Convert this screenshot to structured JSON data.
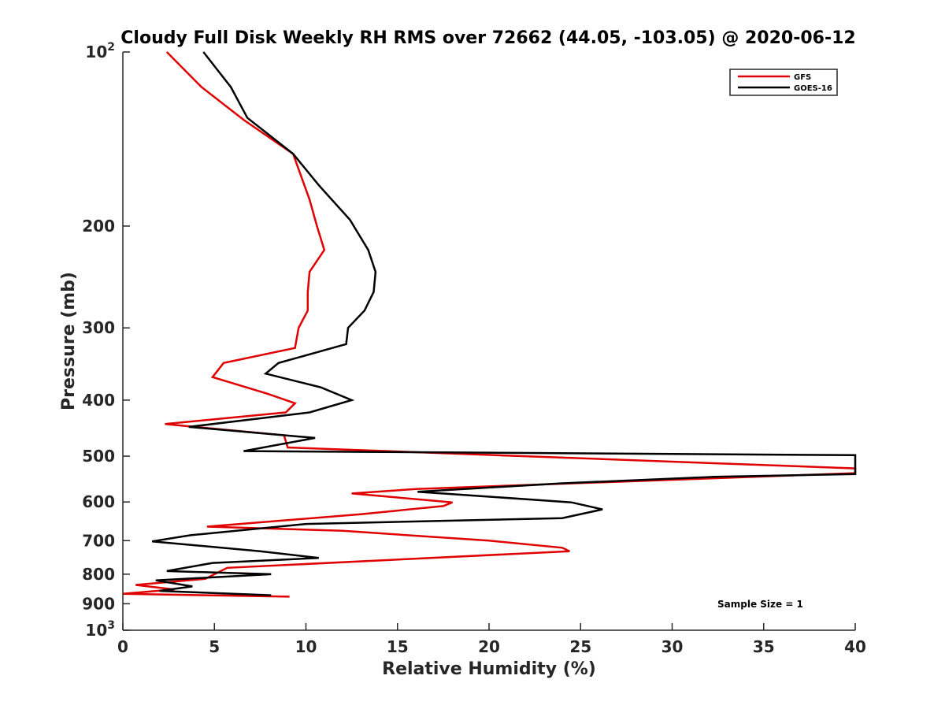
{
  "chart_data": {
    "type": "line",
    "title": "Cloudy Full Disk Weekly RH RMS over 72662 (44.05, -103.05) @ 2020-06-12",
    "xlabel": "Relative Humidity (%)",
    "ylabel": "Pressure (mb)",
    "xlim": [
      0,
      40
    ],
    "ylim": [
      100,
      1000
    ],
    "y_scale": "log",
    "y_reversed": true,
    "x_ticks": [
      "0",
      "5",
      "10",
      "15",
      "20",
      "25",
      "30",
      "35",
      "40"
    ],
    "y_ticks": [
      {
        "p": 100,
        "label": "10",
        "sup": "2"
      },
      {
        "p": 200,
        "label": "200",
        "sup": ""
      },
      {
        "p": 300,
        "label": "300",
        "sup": ""
      },
      {
        "p": 400,
        "label": "400",
        "sup": ""
      },
      {
        "p": 500,
        "label": "500",
        "sup": ""
      },
      {
        "p": 600,
        "label": "600",
        "sup": ""
      },
      {
        "p": 700,
        "label": "700",
        "sup": ""
      },
      {
        "p": 800,
        "label": "800",
        "sup": ""
      },
      {
        "p": 900,
        "label": "900",
        "sup": ""
      },
      {
        "p": 1000,
        "label": "10",
        "sup": "3"
      }
    ],
    "grid": false,
    "legend_position": "top-right",
    "annotation": "Sample Size = 1",
    "series": [
      {
        "name": "GFS",
        "color": "#e00000",
        "points": [
          [
            2.4,
            100
          ],
          [
            4.3,
            115
          ],
          [
            6.6,
            131
          ],
          [
            9.3,
            150
          ],
          [
            10.2,
            180
          ],
          [
            10.6,
            200
          ],
          [
            11.0,
            220
          ],
          [
            10.2,
            240
          ],
          [
            10.1,
            260
          ],
          [
            10.1,
            280
          ],
          [
            9.6,
            300
          ],
          [
            9.4,
            325
          ],
          [
            5.5,
            345
          ],
          [
            4.9,
            365
          ],
          [
            7.9,
            390
          ],
          [
            9.4,
            405
          ],
          [
            8.9,
            420
          ],
          [
            2.3,
            440
          ],
          [
            8.8,
            460
          ],
          [
            9.0,
            483
          ],
          [
            40.0,
            525
          ],
          [
            40.0,
            535
          ],
          [
            16.0,
            570
          ],
          [
            12.5,
            580
          ],
          [
            18.0,
            601
          ],
          [
            17.5,
            610
          ],
          [
            13.0,
            630
          ],
          [
            4.6,
            662
          ],
          [
            12.0,
            673
          ],
          [
            20.0,
            700
          ],
          [
            24.0,
            720
          ],
          [
            24.4,
            730
          ],
          [
            5.7,
            780
          ],
          [
            4.5,
            815
          ],
          [
            0.7,
            835
          ],
          [
            2.8,
            850
          ],
          [
            0.0,
            865
          ],
          [
            9.1,
            875
          ]
        ]
      },
      {
        "name": "GOES-16",
        "color": "#000000",
        "points": [
          [
            4.4,
            100
          ],
          [
            5.9,
            115
          ],
          [
            6.8,
            130
          ],
          [
            9.3,
            150
          ],
          [
            10.7,
            170
          ],
          [
            12.4,
            195
          ],
          [
            13.4,
            220
          ],
          [
            13.8,
            240
          ],
          [
            13.7,
            260
          ],
          [
            13.2,
            280
          ],
          [
            12.3,
            300
          ],
          [
            12.2,
            320
          ],
          [
            8.5,
            345
          ],
          [
            7.8,
            360
          ],
          [
            10.8,
            380
          ],
          [
            12.5,
            400
          ],
          [
            10.2,
            420
          ],
          [
            3.6,
            445
          ],
          [
            10.5,
            465
          ],
          [
            6.6,
            490
          ],
          [
            40.0,
            498
          ],
          [
            40.0,
            537
          ],
          [
            32.3,
            543
          ],
          [
            24.0,
            557
          ],
          [
            16.1,
            576
          ],
          [
            24.5,
            601
          ],
          [
            26.2,
            618
          ],
          [
            24.0,
            640
          ],
          [
            10.0,
            655
          ],
          [
            3.7,
            685
          ],
          [
            1.6,
            702
          ],
          [
            7.5,
            730
          ],
          [
            10.7,
            750
          ],
          [
            4.9,
            765
          ],
          [
            2.4,
            790
          ],
          [
            8.1,
            800
          ],
          [
            1.8,
            820
          ],
          [
            3.8,
            840
          ],
          [
            2.0,
            855
          ],
          [
            8.1,
            870
          ]
        ]
      }
    ]
  }
}
